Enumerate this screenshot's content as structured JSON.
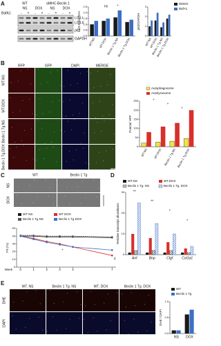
{
  "panel_labels": [
    "A",
    "B",
    "C",
    "D",
    "E"
  ],
  "blot": {
    "groups": [
      "WT",
      "αMHC-Beclin 1"
    ],
    "treatments": [
      "NS",
      "DOX",
      "NS",
      "DOX"
    ],
    "bafa1_label": "BafA1",
    "bafa1": [
      "-",
      "+",
      "-",
      "+",
      "-",
      "+",
      "-",
      "+"
    ],
    "bands": [
      "LC3-I",
      "LC3-II",
      "p62",
      "GAPDH"
    ]
  },
  "fluorescence": {
    "columns": [
      "RFP",
      "GFP",
      "DAPI",
      "MERGE"
    ],
    "rows": [
      "WT.NS",
      "WT.DOX",
      "Beclin 1 Tg.NS",
      "Beclin 1 Tg.DOX"
    ]
  },
  "echo": {
    "columns": [
      "WT",
      "Beclin 1 Tg"
    ],
    "rows": [
      "NS",
      "DOX"
    ]
  },
  "dhe": {
    "columns": [
      "WT. NS",
      "Beclin 1 Tg. NS",
      "WT. DOX",
      "Beclin 1 Tg. DOX"
    ],
    "rows": [
      "DHE",
      "DAPI"
    ]
  },
  "chart_data": [
    {
      "type": "bar",
      "ylabel": "LC3-II/GAPDH",
      "categories": [
        "WT.NS",
        "WT.DOX",
        "Beclin 1 Tg.NS",
        "Beclin 1 Tg.DOX"
      ],
      "series": [
        {
          "name": "DMSO",
          "color": "#1a1a1a",
          "values": [
            1.0,
            1.3,
            1.6,
            1.2
          ]
        },
        {
          "name": "BafA1",
          "color": "#3d6fc4",
          "values": [
            1.3,
            1.5,
            2.2,
            1.4
          ]
        }
      ],
      "ylim": [
        0,
        2.5
      ],
      "yticks": [
        {
          "value": 0,
          "label": "0.0"
        },
        {
          "value": 0.5,
          "label": "0.5"
        },
        {
          "value": 1,
          "label": "1.0"
        },
        {
          "value": 1.5,
          "label": "1.5"
        },
        {
          "value": 2,
          "label": "2.0"
        },
        {
          "value": 2.5,
          "label": "2.5"
        }
      ],
      "annotations": [
        "ns",
        "*"
      ]
    },
    {
      "type": "bar",
      "ylabel": "p62/GAPDH",
      "categories": [
        "WT.NS",
        "WT.DOX",
        "Beclin 1 Tg.NS",
        "Beclin 1 Tg.DOX"
      ],
      "series": [
        {
          "name": "DMSO",
          "color": "#1a1a1a",
          "values": [
            1.0,
            1.6,
            0.9,
            1.8
          ]
        },
        {
          "name": "BafA1",
          "color": "#3d6fc4",
          "values": [
            1.6,
            2.4,
            1.4,
            2.2
          ]
        }
      ],
      "ylim": [
        0,
        3
      ],
      "yticks": [
        0,
        1,
        2,
        3
      ],
      "legend": "outside right"
    },
    {
      "type": "bar",
      "ylabel": "Puncta/ HPF",
      "categories": [
        "WT.NS",
        "WT.DOX",
        "Beclin 1 Tg.NS",
        "Beclin 1 Tg.DOX"
      ],
      "series": [
        {
          "name": "Autophagosome",
          "color": "#f2e24a",
          "values": [
            20,
            25,
            30,
            45
          ]
        },
        {
          "name": "Autolysosome",
          "color": "#d8302a",
          "values": [
            80,
            110,
            130,
            200
          ]
        }
      ],
      "ylim": [
        0,
        250
      ],
      "yticks": [
        0,
        50,
        100,
        150,
        200,
        250
      ],
      "legend": "top",
      "annotations": [
        "*",
        "*",
        "*"
      ]
    },
    {
      "type": "line",
      "xlabel": "Week",
      "ylabel": "FS (%)",
      "x": [
        0,
        1,
        2,
        3,
        4,
        7
      ],
      "xlim": [
        -0.3,
        7.3
      ],
      "xticks": [
        0,
        1,
        2,
        3,
        4,
        7
      ],
      "series": [
        {
          "name": "WT NS",
          "color": "#1a1a1a",
          "values": [
            40,
            40,
            39,
            39,
            39,
            38
          ]
        },
        {
          "name": "WT DOX",
          "color": "#d8302a",
          "values": [
            40,
            37,
            33,
            30,
            26,
            15
          ]
        },
        {
          "name": "Beclin 1 Tg NS",
          "color": "#555555",
          "values": [
            41,
            41,
            40,
            40,
            40,
            39
          ]
        },
        {
          "name": "Beclin 1 Tg DOX",
          "color": "#3d6fc4",
          "values": [
            40,
            36,
            32,
            29,
            26,
            22
          ]
        }
      ],
      "ylim": [
        0,
        50
      ],
      "yticks": [
        0,
        10,
        20,
        30,
        40,
        50
      ],
      "legend": "top",
      "annotations": [
        "*",
        "#"
      ]
    },
    {
      "type": "bar",
      "ylabel": "Relative transcript abundance",
      "categories": [
        "Anf",
        "Bnp",
        "Ctgf",
        "Col1α1"
      ],
      "series": [
        {
          "name": "WT.NS",
          "color": "#1a1a1a",
          "values": [
            1,
            1,
            1,
            1
          ]
        },
        {
          "name": "WT.DOX",
          "color": "#d8302a",
          "values": [
            10,
            8,
            6,
            3
          ]
        },
        {
          "name": "Beclin 1 Tg. NS",
          "color": "#1a1a1a",
          "hatch": true,
          "values": [
            2,
            2,
            2,
            1
          ]
        },
        {
          "name": "Beclin 1 Tg. DOX",
          "color": "#3d6fc4",
          "hatch": true,
          "values": [
            25,
            15,
            10,
            4
          ]
        }
      ],
      "ylim": [
        0,
        30
      ],
      "yticks": [
        0,
        10,
        20,
        30
      ],
      "legend": "top",
      "annotations": [
        "**",
        "**",
        "*",
        "*"
      ]
    },
    {
      "type": "bar",
      "ylabel": "DHE / DAPI",
      "categories": [
        "NS",
        "DOX"
      ],
      "series": [
        {
          "name": "WT",
          "color": "#1a1a1a",
          "values": [
            0.1,
            0.6
          ]
        },
        {
          "name": "Beclin 1 Tg",
          "color": "#3d6fc4",
          "values": [
            0.1,
            0.75
          ]
        }
      ],
      "ylim": [
        0,
        1
      ],
      "yticks": [
        {
          "value": 0,
          "label": "0.0"
        },
        {
          "value": 0.5,
          "label": "0.5"
        },
        {
          "value": 1,
          "label": "1.0"
        }
      ],
      "legend": "top right"
    }
  ]
}
